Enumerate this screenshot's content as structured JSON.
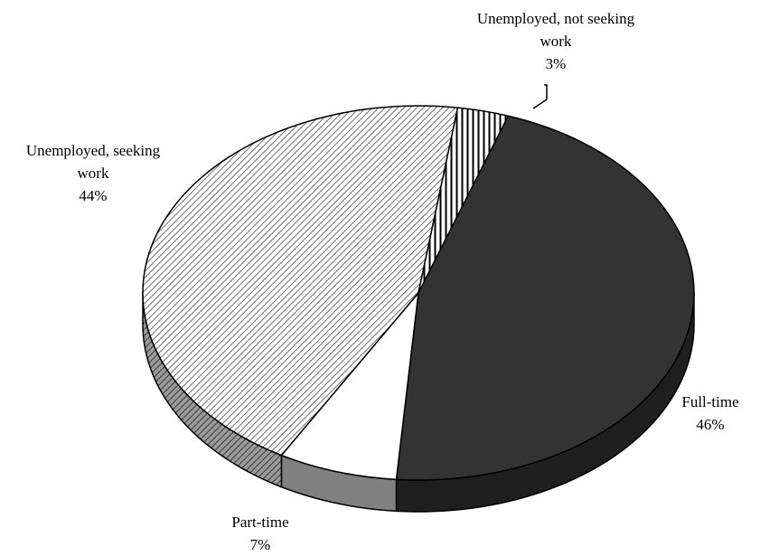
{
  "chart_data": {
    "type": "pie",
    "style": "3d",
    "slices": [
      {
        "label_lines": [
          "Full-time"
        ],
        "pct_label": "46%",
        "value": 46,
        "color": "#333333",
        "side_color": "#1f1f1f",
        "pattern": "solid"
      },
      {
        "label_lines": [
          "Part-time"
        ],
        "pct_label": "7%",
        "value": 7,
        "color": "#ffffff",
        "side_color": "#808080",
        "pattern": "solid"
      },
      {
        "label_lines": [
          "Unemployed, seeking",
          "work"
        ],
        "pct_label": "44%",
        "value": 44,
        "color": "#ffffff",
        "side_color": "#5a5a5a",
        "pattern": "diagonal-hatch"
      },
      {
        "label_lines": [
          "Unemployed, not seeking",
          "work"
        ],
        "pct_label": "3%",
        "value": 3,
        "color": "#ffffff",
        "side_color": "#444444",
        "pattern": "vertical-stripes"
      }
    ]
  }
}
